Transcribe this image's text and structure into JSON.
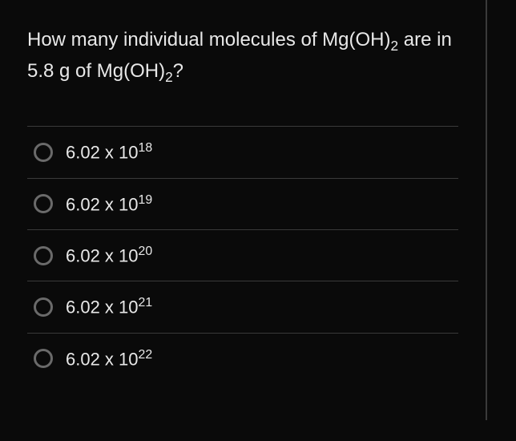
{
  "question": {
    "text_part1": "How many individual molecules of Mg(OH)",
    "sub1": "2",
    "text_part2": " are in 5.8 g of Mg(OH)",
    "sub2": "2",
    "text_part3": "?",
    "font_size": 24,
    "color": "#e8e8e8"
  },
  "options": [
    {
      "base": "6.02 x 10",
      "exponent": "18"
    },
    {
      "base": "6.02 x 10",
      "exponent": "19"
    },
    {
      "base": "6.02 x 10",
      "exponent": "20"
    },
    {
      "base": "6.02 x 10",
      "exponent": "21"
    },
    {
      "base": "6.02 x 10",
      "exponent": "22"
    }
  ],
  "styling": {
    "background_color": "#0a0a0a",
    "text_color": "#e8e8e8",
    "divider_color": "#3a3a3a",
    "radio_border_color": "#6a6a6a",
    "radio_border_width": 3,
    "option_font_size": 22,
    "question_font_size": 24,
    "container_width": 608,
    "container_height": 524,
    "right_border_width": 2
  }
}
